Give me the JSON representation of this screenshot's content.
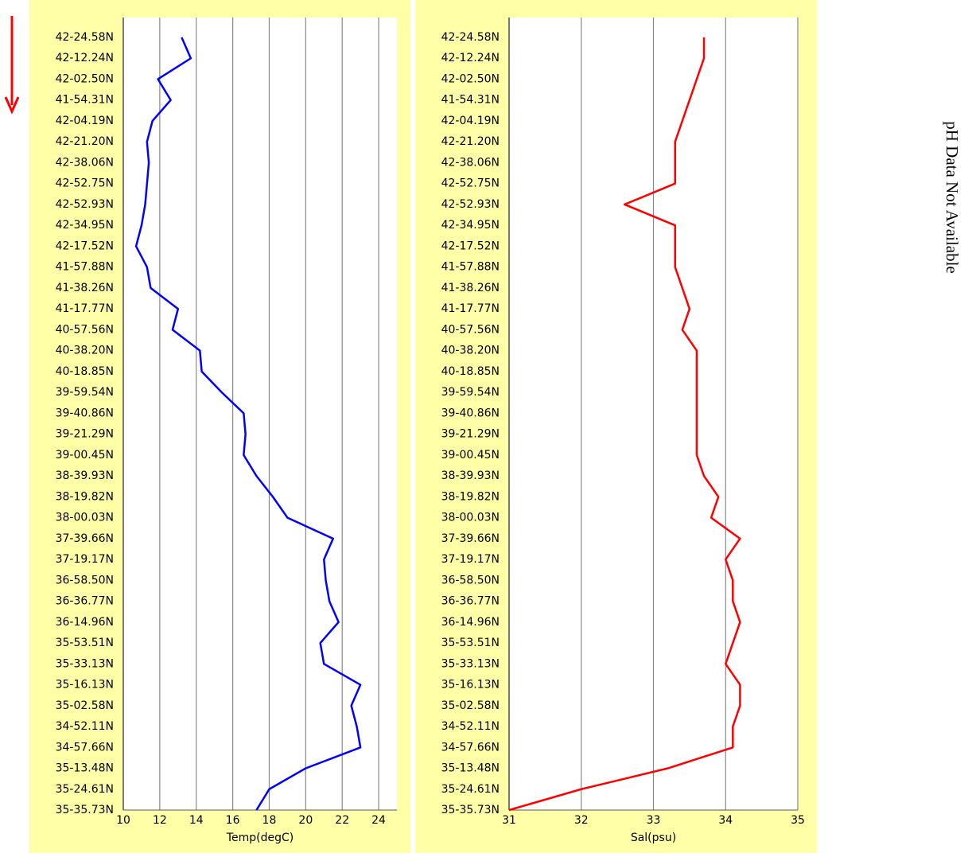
{
  "chart_data": [
    {
      "type": "line",
      "xlabel": "Temp(degC)",
      "color": "#0000ff",
      "categories": [
        "42-24.58N",
        "42-12.24N",
        "42-02.50N",
        "41-54.31N",
        "42-04.19N",
        "42-21.20N",
        "42-38.06N",
        "42-52.75N",
        "42-52.93N",
        "42-34.95N",
        "42-17.52N",
        "41-57.88N",
        "41-38.26N",
        "41-17.77N",
        "40-57.56N",
        "40-38.20N",
        "40-18.85N",
        "39-59.54N",
        "39-40.86N",
        "39-21.29N",
        "39-00.45N",
        "38-39.93N",
        "38-19.82N",
        "38-00.03N",
        "37-39.66N",
        "37-19.17N",
        "36-58.50N",
        "36-36.77N",
        "36-14.96N",
        "35-53.51N",
        "35-33.13N",
        "35-16.13N",
        "35-02.58N",
        "34-52.11N",
        "34-57.66N",
        "35-13.48N",
        "35-24.61N",
        "35-35.73N"
      ],
      "values": [
        13.2,
        13.7,
        11.9,
        12.6,
        11.6,
        11.3,
        11.4,
        11.3,
        11.2,
        11.0,
        10.7,
        11.3,
        11.5,
        13.0,
        12.7,
        14.2,
        14.3,
        15.4,
        16.6,
        16.7,
        16.6,
        17.3,
        18.2,
        19.0,
        21.5,
        21.0,
        21.1,
        21.3,
        21.8,
        20.8,
        21.0,
        23.0,
        22.5,
        22.8,
        23.0,
        20.0,
        18.0,
        17.3
      ],
      "xlim": [
        10,
        25
      ],
      "xticks": [
        10,
        12,
        14,
        16,
        18,
        20,
        22,
        24
      ],
      "grid": true
    },
    {
      "type": "line",
      "xlabel": "Sal(psu)",
      "color": "#ff0000",
      "categories": [
        "42-24.58N",
        "42-12.24N",
        "42-02.50N",
        "41-54.31N",
        "42-04.19N",
        "42-21.20N",
        "42-38.06N",
        "42-52.75N",
        "42-52.93N",
        "42-34.95N",
        "42-17.52N",
        "41-57.88N",
        "41-38.26N",
        "41-17.77N",
        "40-57.56N",
        "40-38.20N",
        "40-18.85N",
        "39-59.54N",
        "39-40.86N",
        "39-21.29N",
        "39-00.45N",
        "38-39.93N",
        "38-19.82N",
        "38-00.03N",
        "37-39.66N",
        "37-19.17N",
        "36-58.50N",
        "36-36.77N",
        "36-14.96N",
        "35-53.51N",
        "35-33.13N",
        "35-16.13N",
        "35-02.58N",
        "34-52.11N",
        "34-57.66N",
        "35-13.48N",
        "35-24.61N",
        "35-35.73N"
      ],
      "values": [
        33.7,
        33.7,
        33.6,
        33.5,
        33.4,
        33.3,
        33.3,
        33.3,
        32.6,
        33.3,
        33.3,
        33.3,
        33.4,
        33.5,
        33.4,
        33.6,
        33.6,
        33.6,
        33.6,
        33.6,
        33.6,
        33.7,
        33.9,
        33.8,
        34.2,
        34.0,
        34.1,
        34.1,
        34.2,
        34.1,
        34.0,
        34.2,
        34.2,
        34.1,
        34.1,
        33.2,
        32.0,
        31.0
      ],
      "xlim": [
        31,
        35
      ],
      "xticks": [
        31,
        32,
        33,
        34,
        35
      ],
      "grid": true
    }
  ],
  "annotation": "pH Data Not Available"
}
